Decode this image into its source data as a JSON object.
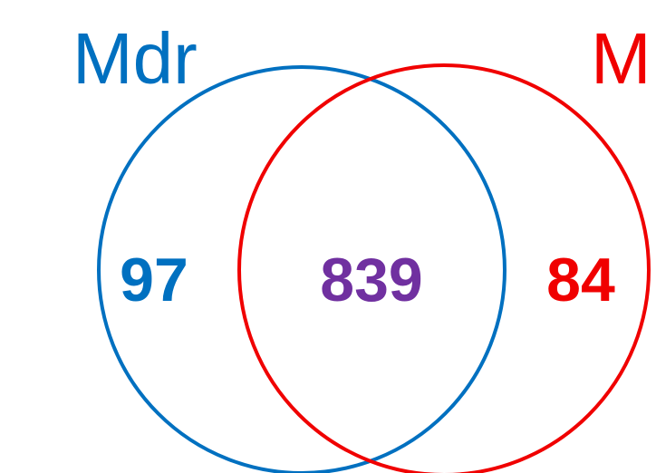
{
  "sets": [
    {
      "label": "Mdr",
      "color": "#0070c0"
    },
    {
      "label": "M",
      "color": "#f00000"
    }
  ],
  "regions": [
    {
      "value": 97,
      "color": "#0070c0"
    },
    {
      "value": 839,
      "color": "#7030a0"
    },
    {
      "value": 84,
      "color": "#f00000"
    }
  ]
}
